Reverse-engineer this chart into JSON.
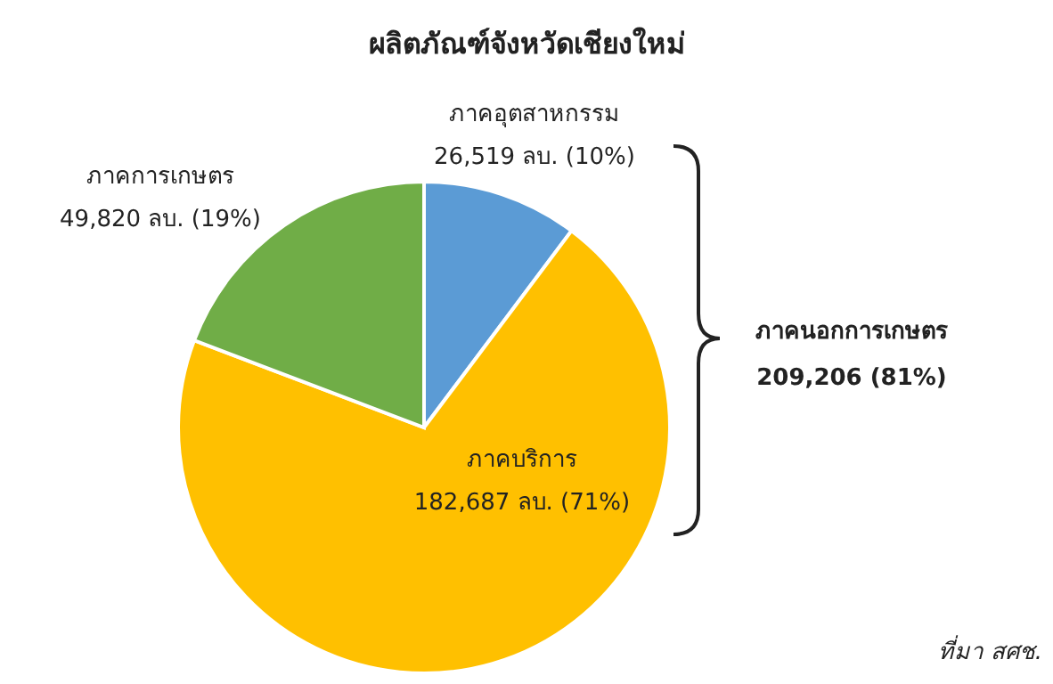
{
  "chart_data": {
    "type": "pie",
    "title": "ผลิตภัณฑ์จังหวัดเชียงใหม่",
    "categories": [
      "ภาคอุตสาหกรรม",
      "ภาคบริการ",
      "ภาคการเกษตร"
    ],
    "values": [
      26519,
      182687,
      49820
    ],
    "colors": [
      "#5b9bd5",
      "#ffc000",
      "#70ad47"
    ],
    "value_labels": [
      "26,519 ลบ. (10%)",
      "182,687 ลบ. (71%)",
      "49,820 ลบ. (19%)"
    ],
    "annotations": [
      "ภาคนอกการเกษตร",
      "209,206 (81%)",
      "ที่มา สศช."
    ]
  }
}
